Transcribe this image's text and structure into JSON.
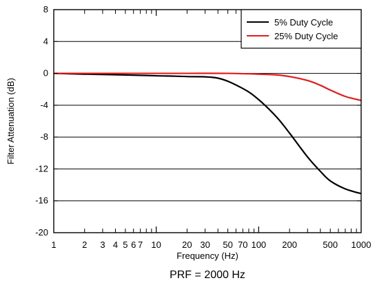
{
  "chart_data": {
    "type": "line",
    "xscale": "log",
    "xlim": [
      1,
      1000
    ],
    "ylim": [
      -20,
      8
    ],
    "xlabel": "Frequency (Hz)",
    "ylabel": "Filter Attenuation (dB)",
    "caption": "PRF = 2000 Hz",
    "grid": "horizontal",
    "legend_position": "top-right",
    "y_ticks": [
      8,
      4,
      0,
      -4,
      -8,
      -12,
      -16,
      -20
    ],
    "y_tick_labels": [
      "8",
      "4",
      "0",
      "-4",
      "-8",
      "-12",
      "-16",
      "-20"
    ],
    "x_tick_labels": [
      {
        "x": 1,
        "label": "1"
      },
      {
        "x": 2,
        "label": "2"
      },
      {
        "x": 3,
        "label": "3"
      },
      {
        "x": 4,
        "label": "4"
      },
      {
        "x": 5,
        "label": "5"
      },
      {
        "x": 6,
        "label": "6"
      },
      {
        "x": 7,
        "label": "7"
      },
      {
        "x": 10,
        "label": "10"
      },
      {
        "x": 20,
        "label": "20"
      },
      {
        "x": 30,
        "label": "30"
      },
      {
        "x": 50,
        "label": "50"
      },
      {
        "x": 70,
        "label": "70"
      },
      {
        "x": 100,
        "label": "100"
      },
      {
        "x": 200,
        "label": "200"
      },
      {
        "x": 500,
        "label": "500"
      },
      {
        "x": 1000,
        "label": "1000"
      }
    ],
    "series": [
      {
        "name": "5% Duty Cycle",
        "color": "#000000",
        "x": [
          1,
          2,
          5,
          10,
          20,
          40,
          70,
          100,
          150,
          200,
          300,
          400,
          500,
          700,
          1000
        ],
        "y": [
          0,
          -0.1,
          -0.2,
          -0.3,
          -0.4,
          -0.6,
          -1.9,
          -3.3,
          -5.5,
          -7.5,
          -10.5,
          -12.3,
          -13.5,
          -14.5,
          -15.1
        ]
      },
      {
        "name": "25% Duty Cycle",
        "color": "#e41a1c",
        "x": [
          1,
          2,
          5,
          10,
          20,
          50,
          100,
          150,
          200,
          300,
          400,
          500,
          700,
          1000
        ],
        "y": [
          0,
          0,
          0,
          0,
          0,
          0,
          -0.1,
          -0.2,
          -0.4,
          -0.9,
          -1.5,
          -2.1,
          -2.9,
          -3.4
        ]
      }
    ]
  }
}
